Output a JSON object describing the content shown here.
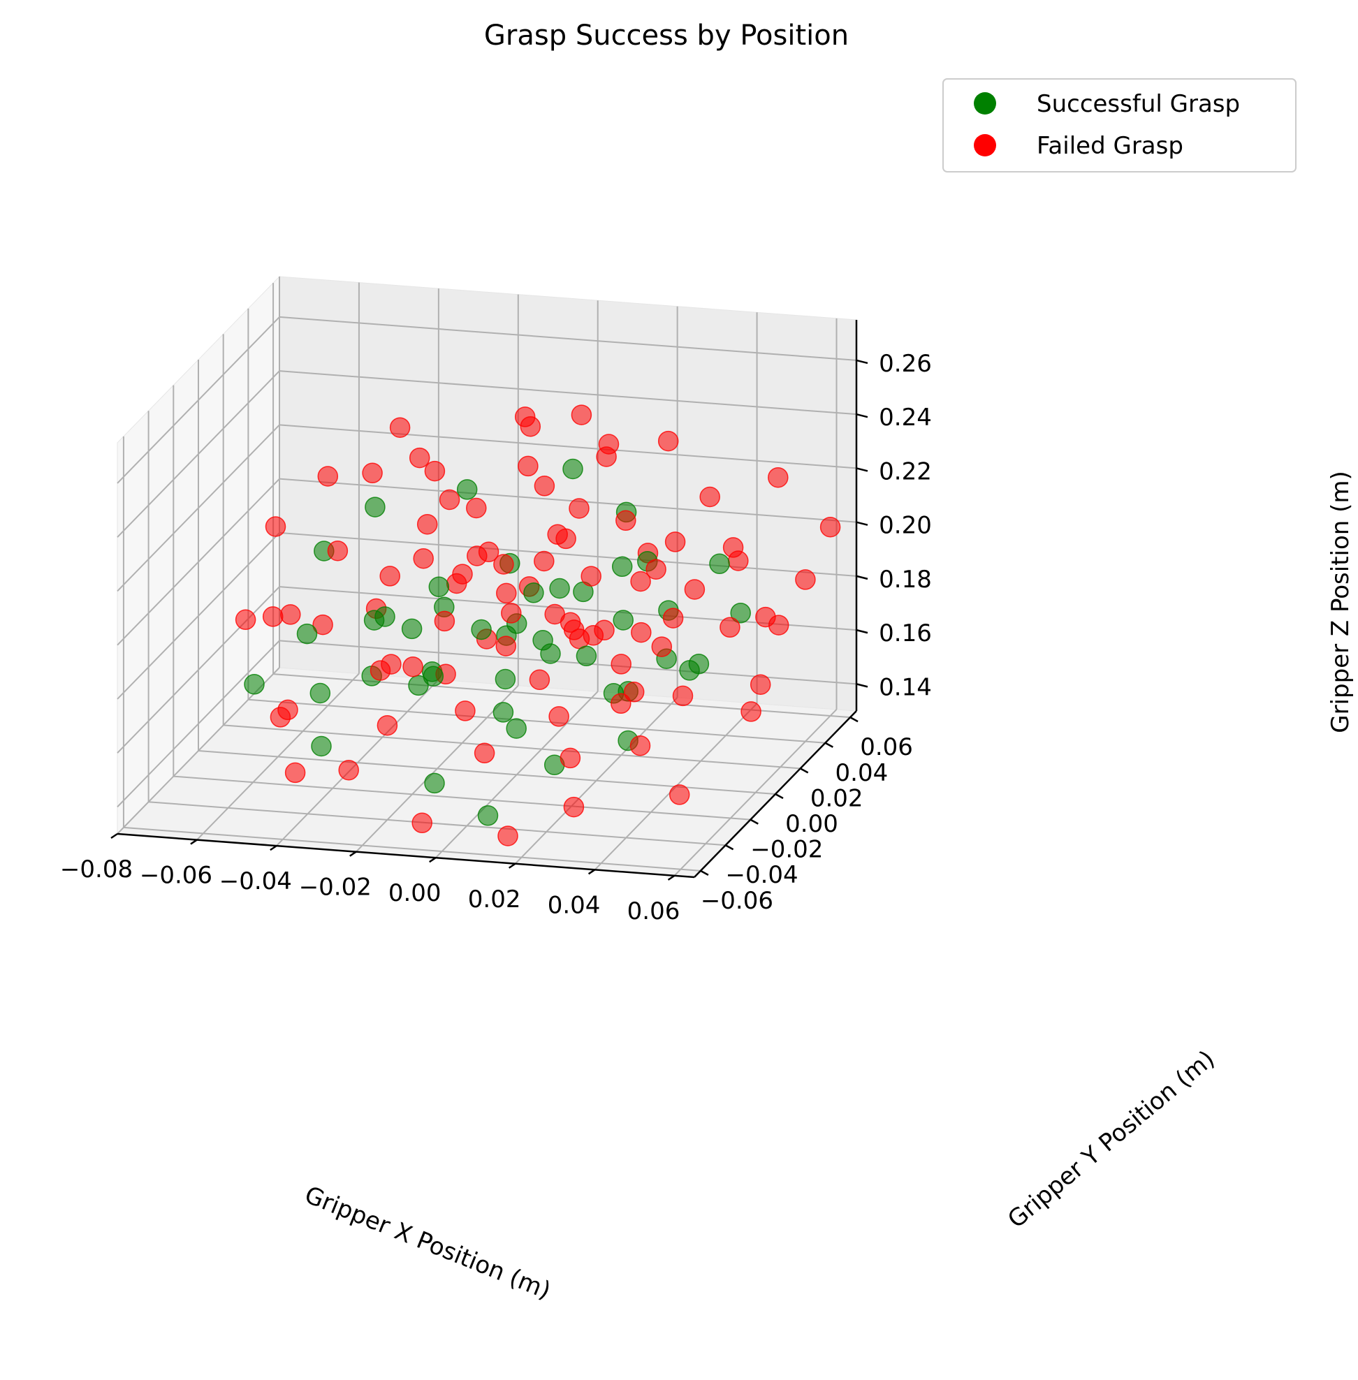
{
  "chart_data": {
    "type": "scatter",
    "projection": "3d",
    "title": "Grasp Success by Position",
    "xlabel": "Gripper X Position (m)",
    "ylabel": "Gripper Y Position (m)",
    "zlabel": "Gripper Z Position (m)",
    "xlim": [
      -0.08,
      0.065
    ],
    "ylim": [
      -0.065,
      0.065
    ],
    "zlim": [
      0.13,
      0.275
    ],
    "x_ticks": [
      "−0.08",
      "−0.06",
      "−0.04",
      "−0.02",
      "0.00",
      "0.02",
      "0.04",
      "0.06"
    ],
    "y_ticks": [
      "−0.06",
      "−0.04",
      "−0.02",
      "0.00",
      "0.02",
      "0.04",
      "0.06"
    ],
    "z_ticks": [
      "0.14",
      "0.16",
      "0.18",
      "0.20",
      "0.22",
      "0.24",
      "0.26"
    ],
    "x_tick_values": [
      -0.08,
      -0.06,
      -0.04,
      -0.02,
      0.0,
      0.02,
      0.04,
      0.06
    ],
    "y_tick_values": [
      -0.06,
      -0.04,
      -0.02,
      0.0,
      0.02,
      0.04,
      0.06
    ],
    "z_tick_values": [
      0.14,
      0.16,
      0.18,
      0.2,
      0.22,
      0.24,
      0.26
    ],
    "grid": true,
    "legend_position": "top-right",
    "series": [
      {
        "name": "Successful Grasp",
        "color": "#008000",
        "points": [
          {
            "x": -0.05,
            "y": 0.005,
            "z": 0.205
          },
          {
            "x": -0.03,
            "y": -0.01,
            "z": 0.19
          },
          {
            "x": -0.022,
            "y": 0.012,
            "z": 0.184
          },
          {
            "x": -0.015,
            "y": -0.02,
            "z": 0.176
          },
          {
            "x": -0.008,
            "y": 0.02,
            "z": 0.198
          },
          {
            "x": 0.0,
            "y": 0.0,
            "z": 0.186
          },
          {
            "x": 0.006,
            "y": -0.03,
            "z": 0.168
          },
          {
            "x": 0.012,
            "y": 0.015,
            "z": 0.192
          },
          {
            "x": 0.02,
            "y": -0.008,
            "z": 0.18
          },
          {
            "x": 0.025,
            "y": 0.025,
            "z": 0.2
          },
          {
            "x": 0.03,
            "y": -0.018,
            "z": 0.172
          },
          {
            "x": 0.035,
            "y": 0.01,
            "z": 0.19
          },
          {
            "x": -0.04,
            "y": -0.03,
            "z": 0.17
          },
          {
            "x": -0.045,
            "y": 0.03,
            "z": 0.21
          },
          {
            "x": -0.035,
            "y": -0.045,
            "z": 0.158
          },
          {
            "x": -0.005,
            "y": -0.05,
            "z": 0.15
          },
          {
            "x": 0.01,
            "y": -0.055,
            "z": 0.142
          },
          {
            "x": 0.022,
            "y": -0.04,
            "z": 0.155
          },
          {
            "x": 0.04,
            "y": 0.035,
            "z": 0.196
          },
          {
            "x": 0.045,
            "y": -0.005,
            "z": 0.176
          },
          {
            "x": -0.025,
            "y": 0.04,
            "z": 0.214
          },
          {
            "x": 0.0,
            "y": 0.045,
            "z": 0.222
          },
          {
            "x": 0.015,
            "y": 0.04,
            "z": 0.21
          },
          {
            "x": -0.018,
            "y": -0.005,
            "z": 0.2
          },
          {
            "x": 0.005,
            "y": 0.005,
            "z": 0.178
          },
          {
            "x": -0.01,
            "y": -0.035,
            "z": 0.182
          },
          {
            "x": 0.028,
            "y": 0.0,
            "z": 0.164
          },
          {
            "x": -0.032,
            "y": 0.018,
            "z": 0.172
          },
          {
            "x": 0.018,
            "y": 0.028,
            "z": 0.176
          },
          {
            "x": -0.002,
            "y": -0.022,
            "z": 0.194
          },
          {
            "x": 0.038,
            "y": -0.032,
            "z": 0.162
          },
          {
            "x": -0.048,
            "y": -0.015,
            "z": 0.184
          },
          {
            "x": 0.05,
            "y": 0.02,
            "z": 0.186
          },
          {
            "x": -0.012,
            "y": 0.03,
            "z": 0.166
          },
          {
            "x": 0.008,
            "y": -0.012,
            "z": 0.204
          },
          {
            "x": -0.028,
            "y": -0.025,
            "z": 0.196
          },
          {
            "x": 0.032,
            "y": 0.018,
            "z": 0.168
          },
          {
            "x": -0.006,
            "y": 0.01,
            "z": 0.16
          },
          {
            "x": 0.016,
            "y": -0.024,
            "z": 0.188
          },
          {
            "x": -0.038,
            "y": 0.005,
            "z": 0.16
          },
          {
            "x": 0.024,
            "y": 0.008,
            "z": 0.206
          },
          {
            "x": 0.002,
            "y": 0.028,
            "z": 0.186
          },
          {
            "x": -0.02,
            "y": -0.015,
            "z": 0.168
          },
          {
            "x": 0.042,
            "y": 0.012,
            "z": 0.17
          },
          {
            "x": -0.055,
            "y": -0.035,
            "z": 0.174
          },
          {
            "x": 0.014,
            "y": -0.045,
            "z": 0.17
          }
        ]
      },
      {
        "name": "Failed Grasp",
        "color": "#ff0000",
        "points": [
          {
            "x": -0.07,
            "y": 0.03,
            "z": 0.2
          },
          {
            "x": -0.065,
            "y": -0.01,
            "z": 0.185
          },
          {
            "x": -0.06,
            "y": 0.04,
            "z": 0.215
          },
          {
            "x": -0.055,
            "y": 0.02,
            "z": 0.17
          },
          {
            "x": -0.05,
            "y": -0.03,
            "z": 0.16
          },
          {
            "x": -0.045,
            "y": 0.05,
            "z": 0.23
          },
          {
            "x": -0.04,
            "y": -0.05,
            "z": 0.15
          },
          {
            "x": -0.035,
            "y": 0.01,
            "z": 0.195
          },
          {
            "x": -0.03,
            "y": 0.03,
            "z": 0.225
          },
          {
            "x": -0.028,
            "y": -0.02,
            "z": 0.175
          },
          {
            "x": -0.025,
            "y": 0.005,
            "z": 0.205
          },
          {
            "x": -0.02,
            "y": -0.04,
            "z": 0.165
          },
          {
            "x": -0.018,
            "y": 0.025,
            "z": 0.215
          },
          {
            "x": -0.015,
            "y": -0.01,
            "z": 0.19
          },
          {
            "x": -0.012,
            "y": 0.045,
            "z": 0.24
          },
          {
            "x": -0.01,
            "y": -0.025,
            "z": 0.178
          },
          {
            "x": -0.008,
            "y": 0.015,
            "z": 0.2
          },
          {
            "x": -0.006,
            "y": -0.005,
            "z": 0.182
          },
          {
            "x": -0.004,
            "y": 0.035,
            "z": 0.22
          },
          {
            "x": -0.002,
            "y": -0.035,
            "z": 0.17
          },
          {
            "x": 0.0,
            "y": 0.01,
            "z": 0.195
          },
          {
            "x": 0.002,
            "y": -0.015,
            "z": 0.185
          },
          {
            "x": 0.004,
            "y": 0.02,
            "z": 0.21
          },
          {
            "x": 0.006,
            "y": -0.045,
            "z": 0.16
          },
          {
            "x": 0.008,
            "y": 0.005,
            "z": 0.188
          },
          {
            "x": 0.01,
            "y": 0.04,
            "z": 0.23
          },
          {
            "x": 0.012,
            "y": -0.02,
            "z": 0.176
          },
          {
            "x": 0.014,
            "y": 0.015,
            "z": 0.198
          },
          {
            "x": 0.016,
            "y": -0.008,
            "z": 0.192
          },
          {
            "x": 0.018,
            "y": 0.03,
            "z": 0.212
          },
          {
            "x": 0.02,
            "y": -0.03,
            "z": 0.168
          },
          {
            "x": 0.022,
            "y": 0.0,
            "z": 0.186
          },
          {
            "x": 0.024,
            "y": 0.045,
            "z": 0.235
          },
          {
            "x": 0.026,
            "y": -0.04,
            "z": 0.158
          },
          {
            "x": 0.028,
            "y": 0.01,
            "z": 0.2
          },
          {
            "x": 0.03,
            "y": -0.012,
            "z": 0.18
          },
          {
            "x": 0.032,
            "y": 0.025,
            "z": 0.208
          },
          {
            "x": 0.034,
            "y": -0.025,
            "z": 0.172
          },
          {
            "x": 0.036,
            "y": 0.04,
            "z": 0.218
          },
          {
            "x": 0.038,
            "y": -0.005,
            "z": 0.184
          },
          {
            "x": 0.04,
            "y": 0.015,
            "z": 0.196
          },
          {
            "x": 0.042,
            "y": -0.035,
            "z": 0.162
          },
          {
            "x": 0.045,
            "y": 0.03,
            "z": 0.205
          },
          {
            "x": 0.048,
            "y": -0.02,
            "z": 0.174
          },
          {
            "x": 0.05,
            "y": 0.05,
            "z": 0.222
          },
          {
            "x": 0.052,
            "y": 0.005,
            "z": 0.188
          },
          {
            "x": 0.055,
            "y": -0.045,
            "z": 0.15
          },
          {
            "x": 0.058,
            "y": 0.025,
            "z": 0.18
          },
          {
            "x": 0.06,
            "y": 0.06,
            "z": 0.2
          },
          {
            "x": 0.062,
            "y": -0.01,
            "z": 0.165
          },
          {
            "x": -0.015,
            "y": -0.03,
            "z": 0.26
          },
          {
            "x": 0.005,
            "y": -0.005,
            "z": 0.262
          },
          {
            "x": 0.02,
            "y": 0.01,
            "z": 0.25
          },
          {
            "x": -0.03,
            "y": -0.02,
            "z": 0.248
          },
          {
            "x": 0.01,
            "y": 0.02,
            "z": 0.255
          },
          {
            "x": -0.005,
            "y": -0.06,
            "z": 0.14
          },
          {
            "x": 0.015,
            "y": -0.055,
            "z": 0.135
          },
          {
            "x": 0.03,
            "y": -0.05,
            "z": 0.145
          },
          {
            "x": -0.025,
            "y": -0.055,
            "z": 0.155
          },
          {
            "x": -0.045,
            "y": -0.04,
            "z": 0.168
          },
          {
            "x": -0.055,
            "y": -0.02,
            "z": 0.192
          },
          {
            "x": -0.035,
            "y": 0.04,
            "z": 0.2
          },
          {
            "x": 0.0,
            "y": 0.05,
            "z": 0.205
          },
          {
            "x": 0.04,
            "y": 0.05,
            "z": 0.19
          },
          {
            "x": 0.05,
            "y": 0.04,
            "z": 0.175
          },
          {
            "x": 0.055,
            "y": 0.02,
            "z": 0.16
          },
          {
            "x": -0.01,
            "y": 0.0,
            "z": 0.21
          },
          {
            "x": 0.01,
            "y": -0.01,
            "z": 0.215
          },
          {
            "x": -0.02,
            "y": 0.01,
            "z": 0.225
          },
          {
            "x": 0.018,
            "y": -0.018,
            "z": 0.228
          },
          {
            "x": -0.005,
            "y": 0.025,
            "z": 0.232
          },
          {
            "x": 0.025,
            "y": 0.02,
            "z": 0.176
          },
          {
            "x": -0.03,
            "y": -0.005,
            "z": 0.17
          },
          {
            "x": -0.04,
            "y": 0.015,
            "z": 0.18
          },
          {
            "x": 0.035,
            "y": 0.0,
            "z": 0.21
          },
          {
            "x": 0.005,
            "y": 0.03,
            "z": 0.17
          },
          {
            "x": -0.012,
            "y": -0.045,
            "z": 0.19
          },
          {
            "x": 0.028,
            "y": -0.028,
            "z": 0.198
          },
          {
            "x": -0.022,
            "y": 0.022,
            "z": 0.188
          },
          {
            "x": 0.012,
            "y": 0.012,
            "z": 0.176
          },
          {
            "x": -0.002,
            "y": -0.002,
            "z": 0.198
          },
          {
            "x": 0.008,
            "y": -0.03,
            "z": 0.205
          },
          {
            "x": -0.018,
            "y": 0.035,
            "z": 0.194
          },
          {
            "x": 0.022,
            "y": 0.035,
            "z": 0.198
          },
          {
            "x": -0.008,
            "y": -0.018,
            "z": 0.212
          },
          {
            "x": 0.032,
            "y": -0.008,
            "z": 0.168
          },
          {
            "x": -0.045,
            "y": 0.0,
            "z": 0.208
          },
          {
            "x": 0.044,
            "y": -0.015,
            "z": 0.2
          },
          {
            "x": -0.06,
            "y": 0.01,
            "z": 0.178
          },
          {
            "x": 0.06,
            "y": 0.04,
            "z": 0.19
          }
        ]
      }
    ]
  }
}
